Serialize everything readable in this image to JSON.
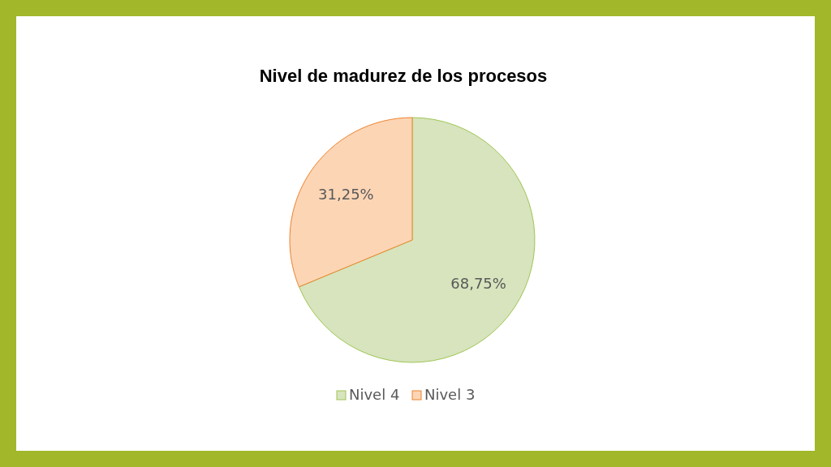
{
  "chart_data": {
    "type": "pie",
    "title": "Nivel de madurez de los procesos",
    "categories": [
      "Nivel 4",
      "Nivel 3"
    ],
    "values": [
      68.75,
      31.25
    ],
    "colors": [
      "#d7e4bd",
      "#fcd5b5"
    ],
    "value_labels": [
      "68,75%",
      "31,25%"
    ],
    "legend": "bottom"
  }
}
